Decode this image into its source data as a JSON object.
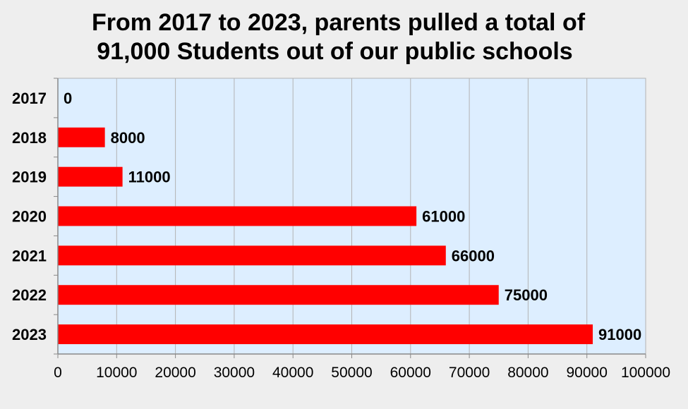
{
  "chart_data": {
    "type": "bar",
    "orientation": "horizontal",
    "title_lines": [
      "From 2017 to 2023, parents pulled a total of",
      "91,000 Students out of our public schools"
    ],
    "categories": [
      "2017",
      "2018",
      "2019",
      "2020",
      "2021",
      "2022",
      "2023"
    ],
    "values": [
      0,
      8000,
      11000,
      61000,
      66000,
      75000,
      91000
    ],
    "value_labels": [
      "0",
      "8000",
      "11000",
      "61000",
      "66000",
      "75000",
      "91000"
    ],
    "x_ticks": [
      0,
      10000,
      20000,
      30000,
      40000,
      50000,
      60000,
      70000,
      80000,
      90000,
      100000
    ],
    "x_tick_labels": [
      "0",
      "10000",
      "20000",
      "30000",
      "40000",
      "50000",
      "60000",
      "70000",
      "80000",
      "90000",
      "100000"
    ],
    "xlim": [
      0,
      100000
    ],
    "xlabel": "",
    "ylabel": "",
    "grid": true,
    "legend": "none",
    "colors": {
      "bar": "#ff0000",
      "plot_background": "#ddeeff",
      "page_background": "#eeeeee",
      "grid": "#b3b3b3",
      "axis": "#888888"
    }
  }
}
